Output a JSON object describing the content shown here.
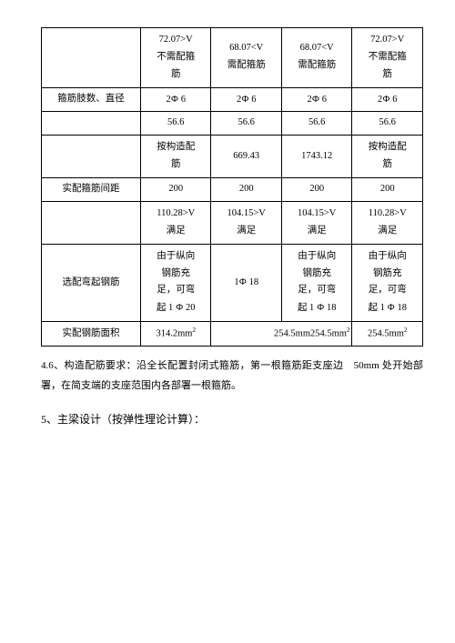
{
  "table": {
    "rows": [
      {
        "label": "",
        "c1": "72.07>V\n不需配箍\n筋",
        "c2": "68.07<V\n需配箍筋",
        "c3": "68.07<V\n需配箍筋",
        "c4": "72.07>V\n不需配箍\n筋"
      },
      {
        "label": "箍筋肢数、直径",
        "c1": "2Φ 6",
        "c2": "2Φ 6",
        "c3": "2Φ 6",
        "c4": "2Φ 6"
      },
      {
        "label": "",
        "c1": "56.6",
        "c2": "56.6",
        "c3": "56.6",
        "c4": "56.6"
      },
      {
        "label": "",
        "c1": "按构造配\n筋",
        "c2": "669.43",
        "c3": "1743.12",
        "c4": "按构造配\n筋"
      },
      {
        "label": "实配箍筋间距",
        "c1": "200",
        "c2": "200",
        "c3": "200",
        "c4": "200"
      },
      {
        "label": "",
        "c1": "110.28>V\n满足",
        "c2": "104.15>V\n满足",
        "c3": "104.15>V\n满足",
        "c4": "110.28>V\n满足"
      },
      {
        "label": "选配弯起钢筋",
        "c1": "由于纵向\n钢筋充\n足，可弯\n起 1 Φ 20",
        "c2": "1Φ 18",
        "c3": "由于纵向\n钢筋充\n足，可弯\n起 1 Φ 18",
        "c4": "由于纵向\n钢筋充\n足，可弯\n起 1 Φ 18"
      },
      {
        "label": "实配钢筋面积",
        "c1": "314.2mm²",
        "c2_c3_merged": "254.5mm254.5mm²",
        "c4": "254.5mm²"
      }
    ]
  },
  "paragraph_4_6": "4.6、构造配筋要求：沿全长配置封闭式箍筋，第一根箍筋距支座边　50mm 处开始部署，在简支端的支座范围内各部署一根箍筋。",
  "section_5": "5、主梁设计（按弹性理论计算）："
}
